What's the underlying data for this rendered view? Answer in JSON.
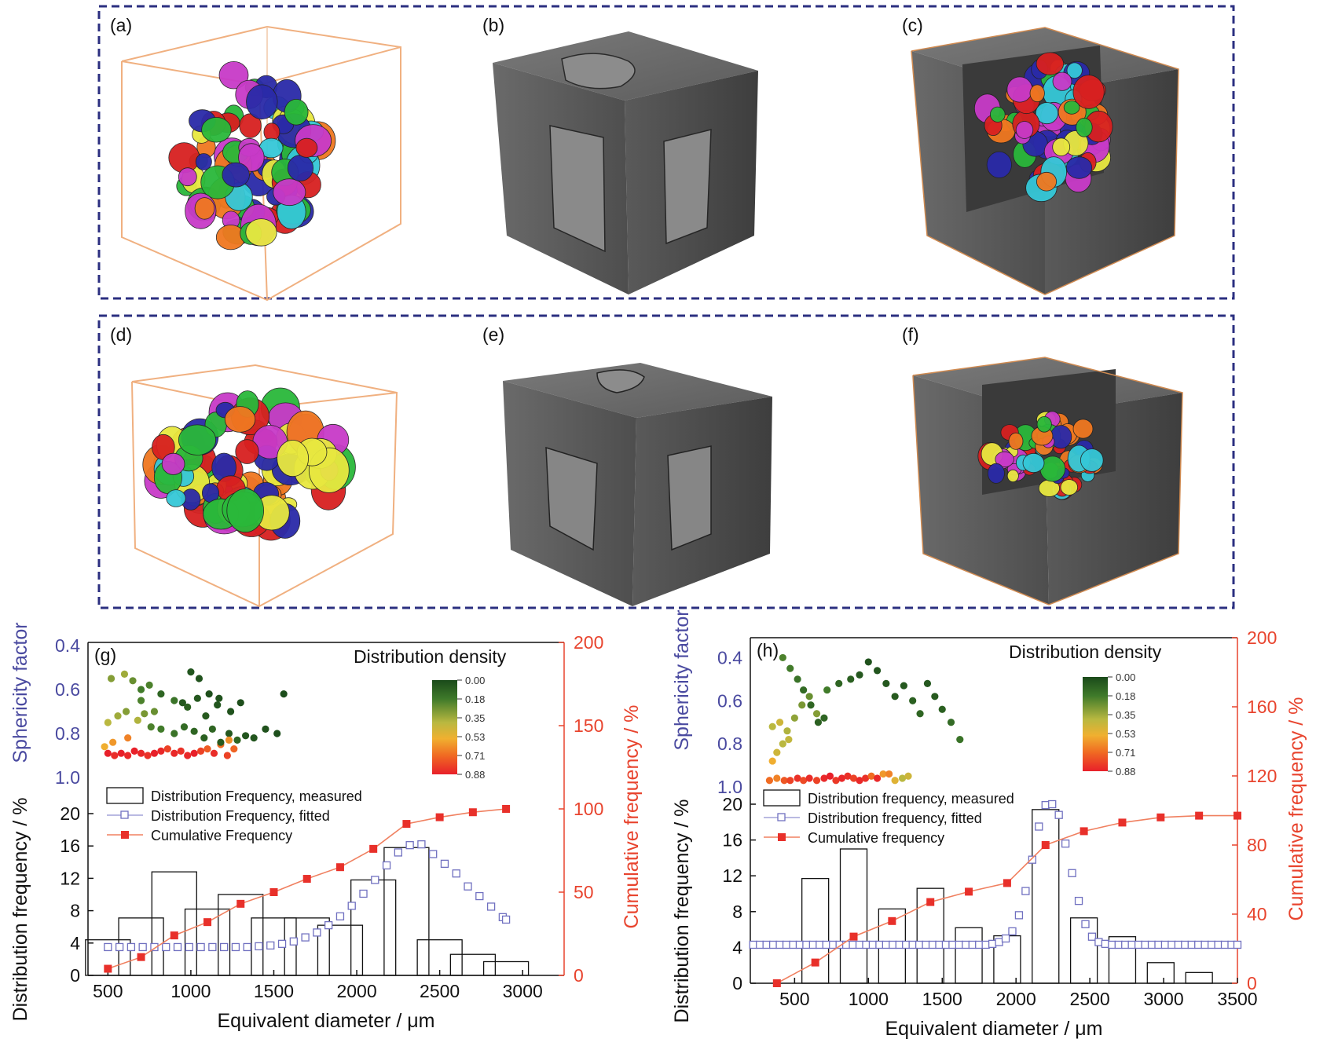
{
  "panels": {
    "a": "(a)",
    "b": "(b)",
    "c": "(c)",
    "d": "(d)",
    "e": "(e)",
    "f": "(f)"
  },
  "chart_data": [
    {
      "id": "g",
      "panel_label": "(g)",
      "type": "bar",
      "xlabel": "Equivalent diameter / μm",
      "ylabel": "Distribution frequency / %",
      "ylabel2": "Cumulative frequency / %",
      "ylabel_top": "Sphericity factor",
      "xlim": [
        380,
        3250
      ],
      "xticks": [
        500,
        1000,
        1500,
        2000,
        2500,
        3000
      ],
      "yticks": [
        0,
        4,
        8,
        12,
        16,
        20
      ],
      "y2ticks": [
        0,
        50,
        100,
        150,
        200
      ],
      "sphericity_ticks": [
        "0.4",
        "0.6",
        "0.8",
        "1.0"
      ],
      "sphericity_lim": [
        0.4,
        1.0
      ],
      "density_title": "Distribution density",
      "colorbar_ticks": [
        "0.00",
        "0.18",
        "0.35",
        "0.53",
        "0.71",
        "0.88"
      ],
      "legend": [
        "Distribution Frequency, measured",
        "Distribution Frequency, fitted",
        "Cumulative Frequency"
      ],
      "bars": {
        "centers": [
          500,
          700,
          900,
          1100,
          1300,
          1500,
          1700,
          1900,
          2100,
          2300,
          2500,
          2700,
          2900
        ],
        "values": [
          4.4,
          7.1,
          12.8,
          8.2,
          10.0,
          7.1,
          7.1,
          6.2,
          11.8,
          15.8,
          4.4,
          2.6,
          1.7
        ]
      },
      "fitted": {
        "x": [
          500,
          570,
          640,
          710,
          780,
          850,
          920,
          990,
          1060,
          1130,
          1200,
          1270,
          1340,
          1410,
          1480,
          1550,
          1620,
          1690,
          1760,
          1830,
          1900,
          1970,
          2040,
          2110,
          2180,
          2250,
          2320,
          2390,
          2460,
          2530,
          2600,
          2670,
          2740,
          2810,
          2880,
          2900
        ],
        "y": [
          3.5,
          3.5,
          3.5,
          3.5,
          3.5,
          3.5,
          3.5,
          3.5,
          3.5,
          3.5,
          3.5,
          3.5,
          3.5,
          3.6,
          3.7,
          3.9,
          4.2,
          4.7,
          5.3,
          6.2,
          7.3,
          8.6,
          10.1,
          11.8,
          13.6,
          15.2,
          16.1,
          16.2,
          15.0,
          13.8,
          12.6,
          11.0,
          9.8,
          8.5,
          7.2,
          6.9
        ]
      },
      "cumulative": {
        "x": [
          500,
          700,
          900,
          1100,
          1300,
          1500,
          1700,
          1900,
          2100,
          2300,
          2500,
          2700,
          2900
        ],
        "y": [
          4,
          11,
          24,
          32,
          43,
          50,
          58,
          65,
          76,
          91,
          95,
          98,
          100
        ]
      },
      "scatter_rows_note": "",
      "scatter": {
        "x": [
          500,
          540,
          580,
          620,
          660,
          700,
          740,
          780,
          820,
          860,
          900,
          940,
          980,
          1020,
          1060,
          1100,
          1140,
          1180,
          1220,
          1260,
          500,
          560,
          610,
          680,
          720,
          760,
          820,
          900,
          960,
          1020,
          1080,
          1130,
          1180,
          1230,
          1280,
          1330,
          1380,
          1450,
          1520,
          520,
          600,
          650,
          700,
          750,
          820,
          950,
          1000,
          1050,
          1110,
          1170,
          1240,
          1300,
          1560,
          480,
          530,
          620,
          700,
          780,
          900,
          980,
          1040,
          1090,
          1160,
          1230
        ],
        "y": [
          0.89,
          0.9,
          0.89,
          0.9,
          0.88,
          0.89,
          0.9,
          0.89,
          0.88,
          0.87,
          0.89,
          0.88,
          0.9,
          0.89,
          0.88,
          0.87,
          0.89,
          0.85,
          0.9,
          0.87,
          0.75,
          0.72,
          0.7,
          0.74,
          0.71,
          0.77,
          0.78,
          0.8,
          0.77,
          0.79,
          0.82,
          0.78,
          0.84,
          0.8,
          0.83,
          0.81,
          0.82,
          0.78,
          0.8,
          0.55,
          0.53,
          0.56,
          0.6,
          0.58,
          0.62,
          0.66,
          0.52,
          0.55,
          0.62,
          0.64,
          0.7,
          0.66,
          0.62,
          0.86,
          0.84,
          0.82,
          0.65,
          0.7,
          0.65,
          0.68,
          0.64,
          0.72,
          0.67,
          0.83
        ],
        "density": [
          0.88,
          0.85,
          0.88,
          0.86,
          0.88,
          0.86,
          0.84,
          0.88,
          0.86,
          0.8,
          0.86,
          0.84,
          0.86,
          0.88,
          0.8,
          0.74,
          0.85,
          0.7,
          0.8,
          0.72,
          0.4,
          0.35,
          0.3,
          0.38,
          0.28,
          0.2,
          0.18,
          0.15,
          0.12,
          0.1,
          0.08,
          0.1,
          0.06,
          0.05,
          0.1,
          0.04,
          0.04,
          0.03,
          0.02,
          0.3,
          0.35,
          0.25,
          0.18,
          0.2,
          0.1,
          0.05,
          0.04,
          0.03,
          0.02,
          0.03,
          0.03,
          0.02,
          0.01,
          0.55,
          0.6,
          0.65,
          0.2,
          0.25,
          0.15,
          0.08,
          0.05,
          0.06,
          0.04,
          0.62
        ]
      }
    },
    {
      "id": "h",
      "panel_label": "(h)",
      "type": "bar",
      "xlabel": "Equivalent diameter / μm",
      "ylabel": "Distribution frequency / %",
      "ylabel2": "Cumulative frequency / %",
      "ylabel_top": "Sphericity factor",
      "xlim": [
        200,
        3500
      ],
      "xticks": [
        500,
        1000,
        1500,
        2000,
        2500,
        3000,
        3500
      ],
      "yticks": [
        0,
        4,
        8,
        12,
        16,
        20
      ],
      "y2ticks": [
        0,
        40,
        80,
        120,
        160,
        200
      ],
      "sphericity_ticks": [
        "0.4",
        "0.6",
        "0.8",
        "1.0"
      ],
      "sphericity_lim": [
        0.3,
        1.0
      ],
      "density_title": "Distribution density",
      "colorbar_ticks": [
        "0.00",
        "0.18",
        "0.35",
        "0.53",
        "0.71",
        "0.88"
      ],
      "legend": [
        "Distribution frequency, measured",
        "Distribution frequency, fitted",
        "Cumulative frequency"
      ],
      "bars": {
        "centers": [
          380,
          640,
          900,
          1160,
          1420,
          1680,
          1940,
          2200,
          2460,
          2720,
          2980,
          3240
        ],
        "values": [
          0,
          11.7,
          15.0,
          8.3,
          10.6,
          6.2,
          5.3,
          19.4,
          7.3,
          5.2,
          2.3,
          1.2
        ]
      },
      "fitted": {
        "x": [
          220,
          265,
          310,
          355,
          400,
          445,
          490,
          535,
          580,
          625,
          670,
          715,
          760,
          805,
          850,
          895,
          940,
          985,
          1030,
          1075,
          1120,
          1165,
          1210,
          1255,
          1300,
          1345,
          1390,
          1435,
          1480,
          1525,
          1570,
          1615,
          1660,
          1705,
          1750,
          1795,
          1840,
          1885,
          1930,
          1975,
          2020,
          2065,
          2110,
          2155,
          2200,
          2245,
          2290,
          2335,
          2380,
          2425,
          2470,
          2515,
          2560,
          2605,
          2650,
          2695,
          2740,
          2785,
          2830,
          2875,
          2920,
          2965,
          3010,
          3055,
          3100,
          3145,
          3190,
          3235,
          3280,
          3325,
          3370,
          3415,
          3460,
          3500
        ],
        "y": [
          4.3,
          4.3,
          4.3,
          4.3,
          4.3,
          4.3,
          4.3,
          4.3,
          4.3,
          4.3,
          4.3,
          4.3,
          4.3,
          4.3,
          4.3,
          4.3,
          4.3,
          4.3,
          4.3,
          4.3,
          4.3,
          4.3,
          4.3,
          4.3,
          4.3,
          4.3,
          4.3,
          4.3,
          4.3,
          4.3,
          4.3,
          4.3,
          4.3,
          4.3,
          4.3,
          4.3,
          4.4,
          4.6,
          5.0,
          5.8,
          7.6,
          10.3,
          13.8,
          17.5,
          19.9,
          20.0,
          18.8,
          15.6,
          12.3,
          9.2,
          6.6,
          5.2,
          4.6,
          4.4,
          4.3,
          4.3,
          4.3,
          4.3,
          4.3,
          4.3,
          4.3,
          4.3,
          4.3,
          4.3,
          4.3,
          4.3,
          4.3,
          4.3,
          4.3,
          4.3,
          4.3,
          4.3,
          4.3,
          4.3
        ]
      },
      "cumulative": {
        "x": [
          380,
          640,
          900,
          1160,
          1420,
          1680,
          1940,
          2200,
          2460,
          2720,
          2980,
          3240,
          3500
        ],
        "y": [
          0,
          12,
          27,
          36,
          47,
          53,
          58,
          80,
          88,
          93,
          96,
          97,
          97
        ]
      },
      "scatter": {
        "x": [
          330,
          380,
          430,
          470,
          520,
          560,
          600,
          650,
          700,
          740,
          780,
          820,
          860,
          900,
          940,
          980,
          1020,
          1060,
          1100,
          1140,
          1180,
          1230,
          1270,
          350,
          400,
          450,
          500,
          550,
          600,
          650,
          720,
          800,
          880,
          940,
          1000,
          1060,
          1120,
          1180,
          1240,
          1300,
          1350,
          1400,
          1450,
          1500,
          1560,
          1620,
          420,
          470,
          520,
          560,
          610,
          660,
          700,
          350,
          380,
          420,
          460
        ],
        "y": [
          0.97,
          0.96,
          0.97,
          0.97,
          0.96,
          0.97,
          0.96,
          0.97,
          0.96,
          0.95,
          0.97,
          0.96,
          0.95,
          0.96,
          0.97,
          0.96,
          0.95,
          0.96,
          0.94,
          0.94,
          0.97,
          0.96,
          0.95,
          0.72,
          0.7,
          0.74,
          0.68,
          0.62,
          0.58,
          0.66,
          0.55,
          0.52,
          0.5,
          0.48,
          0.42,
          0.46,
          0.52,
          0.58,
          0.53,
          0.6,
          0.66,
          0.52,
          0.58,
          0.64,
          0.7,
          0.78,
          0.4,
          0.45,
          0.5,
          0.55,
          0.62,
          0.7,
          0.68,
          0.88,
          0.84,
          0.8,
          0.78
        ],
        "density": [
          0.7,
          0.65,
          0.75,
          0.8,
          0.84,
          0.78,
          0.85,
          0.8,
          0.86,
          0.88,
          0.82,
          0.86,
          0.84,
          0.8,
          0.86,
          0.84,
          0.7,
          0.86,
          0.6,
          0.65,
          0.5,
          0.4,
          0.45,
          0.4,
          0.45,
          0.38,
          0.32,
          0.28,
          0.25,
          0.3,
          0.18,
          0.1,
          0.08,
          0.05,
          0.03,
          0.04,
          0.05,
          0.06,
          0.05,
          0.08,
          0.1,
          0.05,
          0.06,
          0.08,
          0.12,
          0.15,
          0.2,
          0.18,
          0.15,
          0.12,
          0.1,
          0.08,
          0.1,
          0.55,
          0.45,
          0.4,
          0.42
        ]
      }
    }
  ]
}
